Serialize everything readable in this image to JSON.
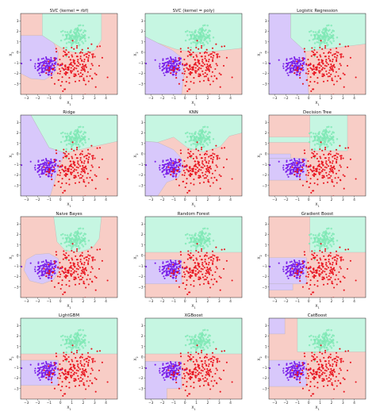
{
  "figure": {
    "colors": {
      "class0_point": "#7a1fe8",
      "class1_point": "#8ff0c0",
      "class2_point": "#e8141e",
      "class0_region": "#d8c8fb",
      "class1_region": "#c6f6e2",
      "class2_region": "#f8cdc6",
      "boundary": "#aaaaaa"
    }
  },
  "chart_data": [
    {
      "type": "scatter",
      "title": "SVC (kernel = rbf)",
      "xlabel": "X1",
      "ylabel": "X2",
      "xlim": [
        -3.5,
        5
      ],
      "ylim": [
        -4,
        3.7
      ],
      "xticks": [
        -3,
        -2,
        -1,
        0,
        1,
        2,
        3,
        4
      ],
      "yticks": [
        -3,
        -2,
        -1,
        0,
        1,
        2,
        3
      ],
      "background": "decision-regions",
      "classes": [
        "purple cluster",
        "aqua cluster",
        "red cluster"
      ]
    },
    {
      "type": "scatter",
      "title": "SVC (kernel = poly)",
      "xlabel": "X1",
      "ylabel": "X2",
      "xlim": [
        -3.5,
        5
      ],
      "ylim": [
        -4,
        3.7
      ],
      "xticks": [
        -3,
        -2,
        -1,
        0,
        1,
        2,
        3,
        4
      ],
      "yticks": [
        -3,
        -2,
        -1,
        0,
        1,
        2,
        3
      ],
      "background": "decision-regions",
      "classes": [
        "purple cluster",
        "aqua cluster",
        "red cluster"
      ]
    },
    {
      "type": "scatter",
      "title": "Logistic Regression",
      "xlabel": "X1",
      "ylabel": "X2",
      "xlim": [
        -3.5,
        5
      ],
      "ylim": [
        -4,
        3.7
      ],
      "xticks": [
        -3,
        -2,
        -1,
        0,
        1,
        2,
        3,
        4
      ],
      "yticks": [
        -3,
        -2,
        -1,
        0,
        1,
        2,
        3
      ],
      "background": "decision-regions",
      "classes": [
        "purple cluster",
        "aqua cluster",
        "red cluster"
      ]
    },
    {
      "type": "scatter",
      "title": "Ridge",
      "xlabel": "X1",
      "ylabel": "X2",
      "xlim": [
        -3.5,
        5
      ],
      "ylim": [
        -4,
        3.7
      ],
      "xticks": [
        -3,
        -2,
        -1,
        0,
        1,
        2,
        3,
        4
      ],
      "yticks": [
        -3,
        -2,
        -1,
        0,
        1,
        2,
        3
      ],
      "background": "decision-regions",
      "classes": [
        "purple cluster",
        "aqua cluster",
        "red cluster"
      ]
    },
    {
      "type": "scatter",
      "title": "KNN",
      "xlabel": "X1",
      "ylabel": "X2",
      "xlim": [
        -3.5,
        5
      ],
      "ylim": [
        -4,
        3.7
      ],
      "xticks": [
        -3,
        -2,
        -1,
        0,
        1,
        2,
        3,
        4
      ],
      "yticks": [
        -3,
        -2,
        -1,
        0,
        1,
        2,
        3
      ],
      "background": "decision-regions",
      "classes": [
        "purple cluster",
        "aqua cluster",
        "red cluster"
      ]
    },
    {
      "type": "scatter",
      "title": "Decision Tree",
      "xlabel": "X1",
      "ylabel": "X2",
      "xlim": [
        -3.5,
        5
      ],
      "ylim": [
        -4,
        3.7
      ],
      "xticks": [
        -3,
        -2,
        -1,
        0,
        1,
        2,
        3,
        4
      ],
      "yticks": [
        -3,
        -2,
        -1,
        0,
        1,
        2,
        3
      ],
      "background": "decision-regions",
      "classes": [
        "purple cluster",
        "aqua cluster",
        "red cluster"
      ]
    },
    {
      "type": "scatter",
      "title": "Naive Bayes",
      "xlabel": "X1",
      "ylabel": "X2",
      "xlim": [
        -3.5,
        5
      ],
      "ylim": [
        -4,
        3.7
      ],
      "xticks": [
        -3,
        -2,
        -1,
        0,
        1,
        2,
        3,
        4
      ],
      "yticks": [
        -3,
        -2,
        -1,
        0,
        1,
        2,
        3
      ],
      "background": "decision-regions",
      "classes": [
        "purple cluster",
        "aqua cluster",
        "red cluster"
      ]
    },
    {
      "type": "scatter",
      "title": "Random Forest",
      "xlabel": "X1",
      "ylabel": "X2",
      "xlim": [
        -3.5,
        5
      ],
      "ylim": [
        -4,
        3.7
      ],
      "xticks": [
        -3,
        -2,
        -1,
        0,
        1,
        2,
        3,
        4
      ],
      "yticks": [
        -3,
        -2,
        -1,
        0,
        1,
        2,
        3
      ],
      "background": "decision-regions",
      "classes": [
        "purple cluster",
        "aqua cluster",
        "red cluster"
      ]
    },
    {
      "type": "scatter",
      "title": "Gradient Boost",
      "xlabel": "X1",
      "ylabel": "X2",
      "xlim": [
        -3.5,
        5
      ],
      "ylim": [
        -4,
        3.7
      ],
      "xticks": [
        -3,
        -2,
        -1,
        0,
        1,
        2,
        3,
        4
      ],
      "yticks": [
        -3,
        -2,
        -1,
        0,
        1,
        2,
        3
      ],
      "background": "decision-regions",
      "classes": [
        "purple cluster",
        "aqua cluster",
        "red cluster"
      ]
    },
    {
      "type": "scatter",
      "title": "LightGBM",
      "xlabel": "X1",
      "ylabel": "X2",
      "xlim": [
        -3.5,
        5
      ],
      "ylim": [
        -4,
        3.7
      ],
      "xticks": [
        -3,
        -2,
        -1,
        0,
        1,
        2,
        3,
        4
      ],
      "yticks": [
        -3,
        -2,
        -1,
        0,
        1,
        2,
        3
      ],
      "background": "decision-regions",
      "classes": [
        "purple cluster",
        "aqua cluster",
        "red cluster"
      ]
    },
    {
      "type": "scatter",
      "title": "XGBoost",
      "xlabel": "X1",
      "ylabel": "X2",
      "xlim": [
        -3.5,
        5
      ],
      "ylim": [
        -4,
        3.7
      ],
      "xticks": [
        -3,
        -2,
        -1,
        0,
        1,
        2,
        3,
        4
      ],
      "yticks": [
        -3,
        -2,
        -1,
        0,
        1,
        2,
        3
      ],
      "background": "decision-regions",
      "classes": [
        "purple cluster",
        "aqua cluster",
        "red cluster"
      ]
    },
    {
      "type": "scatter",
      "title": "CatBoost",
      "xlabel": "X1",
      "ylabel": "X2",
      "xlim": [
        -3.5,
        5
      ],
      "ylim": [
        -4,
        3.7
      ],
      "xticks": [
        -3,
        -2,
        -1,
        0,
        1,
        2,
        3,
        4
      ],
      "yticks": [
        -3,
        -2,
        -1,
        0,
        1,
        2,
        3
      ],
      "background": "decision-regions",
      "classes": [
        "purple cluster",
        "aqua cluster",
        "red cluster"
      ]
    }
  ]
}
